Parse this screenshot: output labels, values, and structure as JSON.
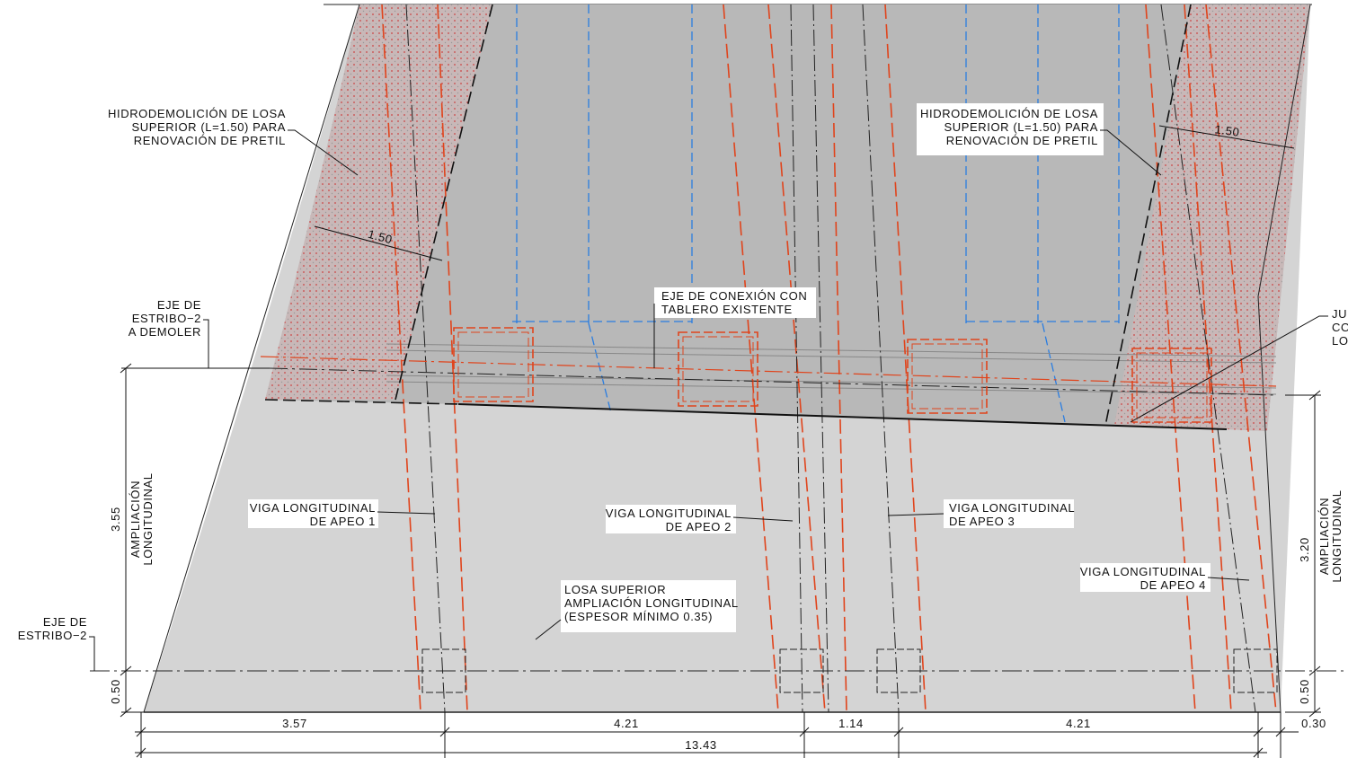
{
  "drawing": {
    "notes": {
      "hydro_left": [
        "HIDRODEMOLICIÓN DE LOSA",
        "SUPERIOR (L=1.50) PARA",
        "RENOVACIÓN DE PRETIL"
      ],
      "hydro_right": [
        "HIDRODEMOLICIÓN DE LOSA",
        "SUPERIOR (L=1.50) PARA",
        "RENOVACIÓN DE PRETIL"
      ],
      "width_left": "1.50",
      "width_right": "1.50",
      "axis_demolish": [
        "EJE DE",
        "ESTRIBO−2",
        "A DEMOLER"
      ],
      "axis_connection": [
        "EJE DE CONEXIÓN CON",
        "TABLERO EXISTENTE"
      ],
      "joint_cut": [
        "JU",
        "CO",
        "LO"
      ],
      "beam_1": [
        "VIGA LONGITUDINAL",
        "DE APEO 1"
      ],
      "beam_2": [
        "VIGA LONGITUDINAL",
        "DE APEO 2"
      ],
      "beam_3": [
        "VIGA LONGITUDINAL",
        "DE APEO 3"
      ],
      "beam_4": [
        "VIGA LONGITUDINAL",
        "DE APEO 4"
      ],
      "slab": [
        "LOSA SUPERIOR",
        "AMPLIACIÓN LONGITUDINAL",
        "(ESPESOR MÍNIMO 0.35)"
      ],
      "axis_abutment": [
        "EJE DE",
        "ESTRIBO−2"
      ]
    },
    "dimensions": {
      "left": {
        "length": "3.55",
        "label": [
          "AMPLIACIÓN",
          "LONGITUDINAL"
        ],
        "offset": "0.50"
      },
      "right": {
        "length": "3.20",
        "label": [
          "AMPLIACIÓN",
          "LONGITUDINAL"
        ],
        "offset": "0.50"
      },
      "bottom": [
        "3.57",
        "4.21",
        "1.14",
        "4.21",
        "0.30"
      ],
      "total": "13.43"
    }
  }
}
